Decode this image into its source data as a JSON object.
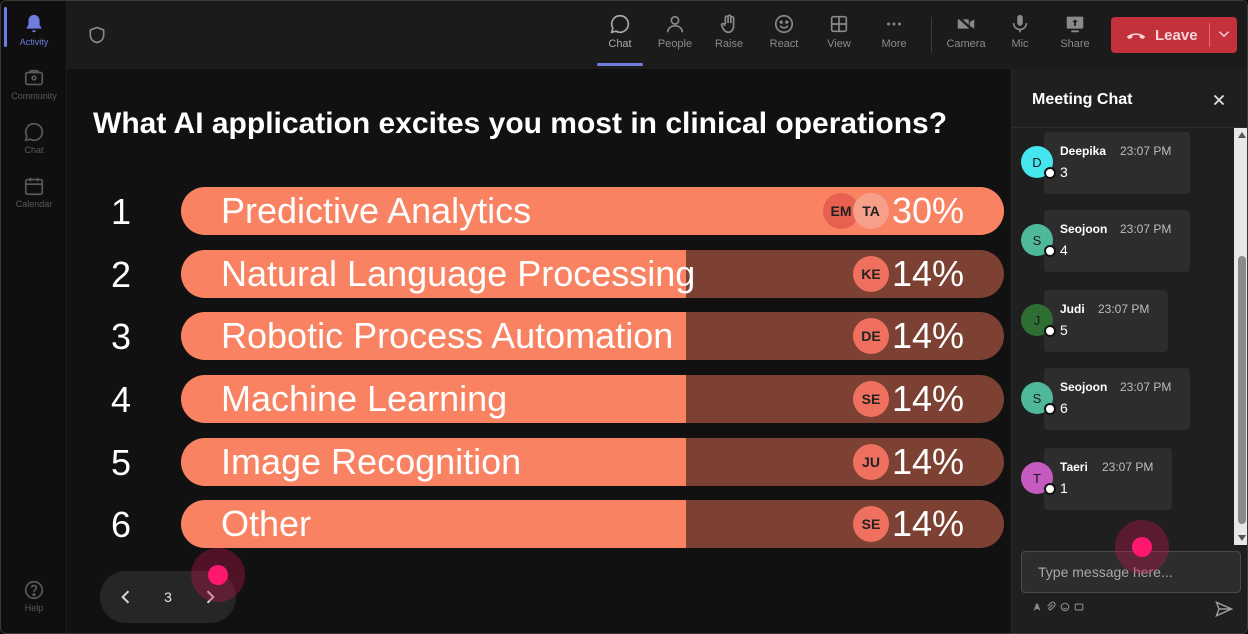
{
  "rail": [
    {
      "label": "Activity",
      "icon": "bell-icon",
      "active": true
    },
    {
      "label": "Community",
      "icon": "community-icon",
      "active": false
    },
    {
      "label": "Chat",
      "icon": "chat-icon",
      "active": false
    },
    {
      "label": "Calendar",
      "icon": "calendar-icon",
      "active": false
    },
    {
      "label": "Help",
      "icon": "help-icon",
      "active": false
    }
  ],
  "toolbar": {
    "chat": "Chat",
    "people": "People",
    "raise": "Raise",
    "react": "React",
    "view": "View",
    "more": "More",
    "camera": "Camera",
    "mic": "Mic",
    "share": "Share",
    "leave": "Leave"
  },
  "poll": {
    "question": "What AI application excites you most in clinical operations?",
    "options": [
      {
        "num": "1",
        "label": "Predictive Analytics",
        "pct": "30%",
        "fraction": 0.3,
        "voters": [
          "EM",
          "TA"
        ]
      },
      {
        "num": "2",
        "label": "Natural Language Processing",
        "pct": "14%",
        "fraction": 0.14,
        "voters": [
          "KE"
        ]
      },
      {
        "num": "3",
        "label": "Robotic Process Automation",
        "pct": "14%",
        "fraction": 0.14,
        "voters": [
          "DE"
        ]
      },
      {
        "num": "4",
        "label": "Machine Learning",
        "pct": "14%",
        "fraction": 0.14,
        "voters": [
          "SE"
        ]
      },
      {
        "num": "5",
        "label": "Image Recognition",
        "pct": "14%",
        "fraction": 0.14,
        "voters": [
          "JU"
        ]
      },
      {
        "num": "6",
        "label": "Other",
        "pct": "14%",
        "fraction": 0.14,
        "voters": [
          "SE"
        ]
      }
    ],
    "page": "3"
  },
  "colors": {
    "bar_fill": "#f88262",
    "bar_track": "#7c4132",
    "leave": "#c4313b",
    "accent": "#6f7de0",
    "cursor": "#ff1870"
  },
  "chat": {
    "title": "Meeting Chat",
    "placeholder": "Type message here...",
    "messages": [
      {
        "initial": "D",
        "name": "Deepika",
        "time": "23:07 PM",
        "text": "3",
        "color": "#45e6ee"
      },
      {
        "initial": "S",
        "name": "Seojoon",
        "time": "23:07 PM",
        "text": "4",
        "color": "#4fb89a"
      },
      {
        "initial": "J",
        "name": "Judi",
        "time": "23:07 PM",
        "text": "5",
        "color": "#2e6e33"
      },
      {
        "initial": "S",
        "name": "Seojoon",
        "time": "23:07 PM",
        "text": "6",
        "color": "#4fb89a"
      },
      {
        "initial": "T",
        "name": "Taeri",
        "time": "23:07 PM",
        "text": "1",
        "color": "#c55bbf"
      }
    ]
  }
}
